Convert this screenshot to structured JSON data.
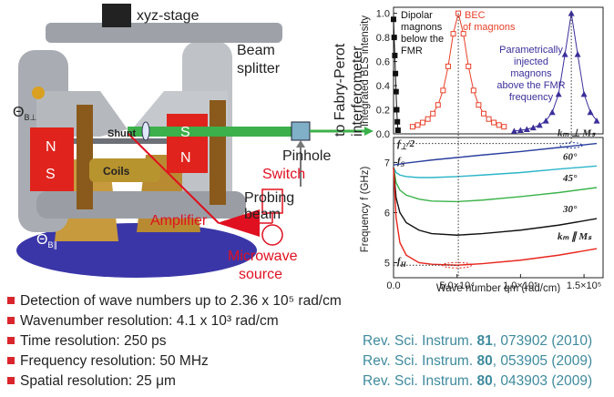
{
  "diagram": {
    "xyz_stage": "xyz-stage",
    "beam_splitter": [
      "Beam",
      "splitter"
    ],
    "pinhole": "Pinhole",
    "probing_beam": [
      "Probing",
      "beam"
    ],
    "fabry_perot": [
      "to Fabry-Perot",
      "interferometer"
    ],
    "shunt": "Shunt",
    "poles_left": [
      "N",
      "S"
    ],
    "poles_right": [
      "S",
      "N"
    ],
    "coils": "Coils",
    "switch": "Switch",
    "amplifier": "Amplifier",
    "microwave_source": [
      "Microwave",
      "source"
    ],
    "theta_perp": {
      "symbol": "Θ",
      "subscript": "B⊥"
    },
    "theta_par": {
      "symbol": "Θ",
      "subscript": "B∥"
    }
  },
  "chart_data": [
    {
      "type": "line",
      "y_label": "Integrated BLS intensity",
      "xlim": [
        0,
        165000
      ],
      "ylim": [
        0,
        1.05
      ],
      "yticks": [
        {
          "value": 0,
          "label": "0.0"
        },
        0.2,
        0.4,
        0.6,
        0.8,
        {
          "value": 1,
          "label": "1.0"
        }
      ],
      "annotations": [
        [
          "Dipolar",
          "magnons",
          "below the",
          "FMR"
        ],
        [
          "BEC",
          "of magnons"
        ],
        [
          "Parametrically",
          "injected",
          "magnons",
          "above the FMR",
          "frequency"
        ]
      ],
      "series": [
        {
          "color": "#111111",
          "marker": "filled-square",
          "x": [
            0,
            500,
            1000,
            1500,
            2000,
            2500,
            3000,
            3500
          ],
          "values": [
            0.95,
            0.8,
            0.65,
            0.5,
            0.35,
            0.2,
            0.1,
            0.03
          ]
        },
        {
          "color": "#e8402a",
          "marker": "open-square",
          "x": [
            15000,
            19000,
            23000,
            27000,
            31000,
            35000,
            39000,
            43000,
            47000,
            51000,
            55000,
            59000,
            63000,
            67000,
            71000,
            75000,
            79000,
            83000,
            87000
          ],
          "values": [
            0.059,
            0.073,
            0.094,
            0.123,
            0.168,
            0.24,
            0.36,
            0.56,
            0.83,
            1.0,
            0.83,
            0.56,
            0.36,
            0.24,
            0.168,
            0.123,
            0.094,
            0.073,
            0.059
          ]
        },
        {
          "color": "#3b2f9a",
          "marker": "triangle",
          "x": [
            95000,
            100000,
            105000,
            110000,
            115000,
            120000,
            125000,
            130000,
            135000,
            140000,
            145000,
            150000,
            155000,
            160000
          ],
          "values": [
            0.024,
            0.03,
            0.038,
            0.052,
            0.073,
            0.109,
            0.179,
            0.33,
            0.66,
            1.0,
            0.66,
            0.33,
            0.179,
            0.109
          ]
        }
      ]
    },
    {
      "type": "line",
      "y_label": "Frequency f (GHz)",
      "x_label": "Wave number qm (rad/cm)",
      "xlim": [
        0,
        165000
      ],
      "ylim": [
        4.7,
        7.5
      ],
      "xticks": [
        {
          "value": 0,
          "label": "0.0"
        },
        {
          "value": 50000,
          "label": "5.0×10⁴"
        },
        {
          "value": 100000,
          "label": "1.0×10⁵"
        },
        {
          "value": 150000,
          "label": "1.5×10⁵"
        }
      ],
      "yticks": [
        5,
        6,
        7
      ],
      "annotations": [
        {
          "symbol": "f",
          "subscript": "⊥",
          "suffix": "/2"
        },
        {
          "symbol": "f",
          "subscript": "S"
        },
        {
          "symbol": "f",
          "subscript": "H"
        }
      ],
      "x": [
        0,
        2000,
        5000,
        10000,
        20000,
        30000,
        50000,
        70000,
        100000,
        130000,
        160000
      ],
      "series": [
        {
          "name": "kₘ ⊥ Mₛ",
          "color": "#2a3f9e",
          "values": [
            6.95,
            6.96,
            6.97,
            6.99,
            7.02,
            7.05,
            7.1,
            7.15,
            7.22,
            7.3,
            7.38
          ]
        },
        {
          "name": "60°",
          "color": "#2bb5c8",
          "values": [
            6.9,
            6.8,
            6.75,
            6.72,
            6.7,
            6.7,
            6.72,
            6.75,
            6.8,
            6.87,
            6.93
          ]
        },
        {
          "name": "45°",
          "color": "#3bb34a",
          "values": [
            6.9,
            6.6,
            6.45,
            6.35,
            6.27,
            6.23,
            6.22,
            6.25,
            6.32,
            6.4,
            6.5
          ]
        },
        {
          "name": "30°",
          "color": "#111111",
          "values": [
            6.9,
            6.3,
            6.0,
            5.8,
            5.65,
            5.58,
            5.55,
            5.58,
            5.65,
            5.75,
            5.88
          ]
        },
        {
          "name": "kₘ ∥ Mₛ",
          "color": "#e8261c",
          "values": [
            6.9,
            5.9,
            5.4,
            5.15,
            5.0,
            4.97,
            4.95,
            4.98,
            5.05,
            5.15,
            5.28
          ]
        }
      ]
    }
  ],
  "bullets": [
    "Detection of wave numbers up to 2.36 x 10⁵ rad/cm",
    "Wavenumber resolution: 4.1 x 10³ rad/cm",
    "Time resolution: 250 ps",
    "Frequency resolution: 50 MHz",
    "Spatial resolution: 25 μm"
  ],
  "references": [
    {
      "journal": "Rev. Sci. Instrum.",
      "volume": "81",
      "rest": ", 073902 (2010)"
    },
    {
      "journal": "Rev. Sci. Instrum.",
      "volume": "80",
      "rest": ", 053905 (2009)"
    },
    {
      "journal": "Rev. Sci. Instrum.",
      "volume": "80",
      "rest": ", 043903 (2009)"
    }
  ]
}
